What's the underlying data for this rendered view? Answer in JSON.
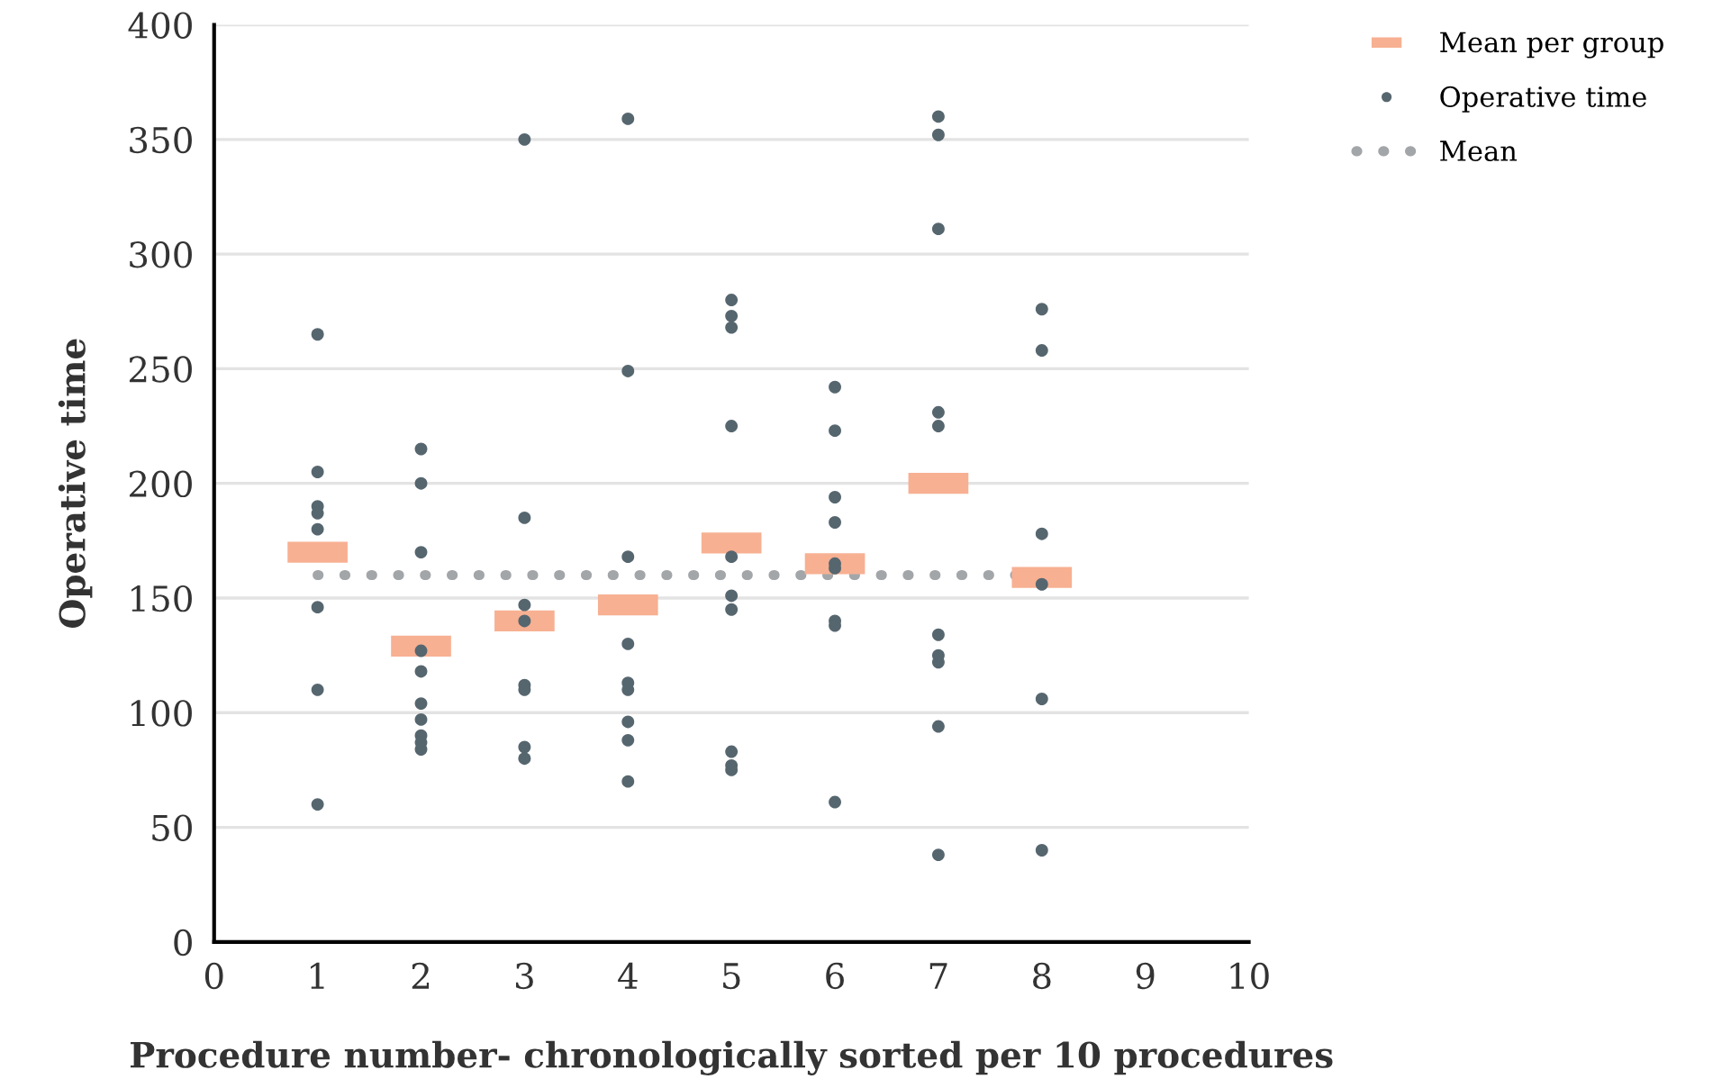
{
  "chart_data": {
    "type": "scatter",
    "xlabel": "Procedure number- chronologically sorted per 10 procedures",
    "ylabel": "Operative time",
    "xlim": [
      0,
      10
    ],
    "xticks": [
      0,
      1,
      2,
      3,
      4,
      5,
      6,
      7,
      8,
      9,
      10
    ],
    "ylim": [
      0,
      400
    ],
    "yticks": [
      0,
      50,
      100,
      150,
      200,
      250,
      300,
      350,
      400
    ],
    "grid": "y",
    "legend": "top right",
    "series": [
      {
        "name": "Mean per group",
        "type": "scatter",
        "marker": "square",
        "color": "#f7b092",
        "x": [
          1,
          2,
          3,
          4,
          5,
          6,
          7,
          8
        ],
        "values": [
          170,
          129,
          140,
          147,
          174,
          165,
          200,
          159
        ]
      },
      {
        "name": "Operative time",
        "marker": "circle",
        "color": "#56666f",
        "x": [
          1,
          1,
          1,
          1,
          1,
          1,
          1,
          1,
          2,
          2,
          2,
          2,
          2,
          2,
          2,
          2,
          2,
          2,
          3,
          3,
          3,
          3,
          3,
          3,
          3,
          3,
          4,
          4,
          4,
          4,
          4,
          4,
          4,
          4,
          4,
          5,
          5,
          5,
          5,
          5,
          5,
          5,
          5,
          5,
          5,
          6,
          6,
          6,
          6,
          6,
          6,
          6,
          6,
          6,
          7,
          7,
          7,
          7,
          7,
          7,
          7,
          7,
          7,
          7,
          8,
          8,
          8,
          8,
          8,
          8
        ],
        "values": [
          265,
          205,
          190,
          187,
          180,
          146,
          110,
          60,
          215,
          200,
          170,
          127,
          118,
          104,
          97,
          90,
          87,
          84,
          350,
          185,
          147,
          140,
          112,
          110,
          85,
          80,
          359,
          249,
          168,
          130,
          113,
          110,
          96,
          88,
          70,
          280,
          273,
          268,
          225,
          168,
          151,
          145,
          83,
          77,
          75,
          242,
          223,
          194,
          183,
          165,
          163,
          140,
          138,
          61,
          360,
          352,
          311,
          231,
          225,
          134,
          125,
          122,
          94,
          38,
          276,
          258,
          178,
          156,
          106,
          40
        ]
      },
      {
        "name": "Mean",
        "type": "line",
        "line_style": "dotted",
        "color": "#a3a6a9",
        "x": [
          1,
          8
        ],
        "values": [
          160,
          160
        ]
      }
    ]
  }
}
